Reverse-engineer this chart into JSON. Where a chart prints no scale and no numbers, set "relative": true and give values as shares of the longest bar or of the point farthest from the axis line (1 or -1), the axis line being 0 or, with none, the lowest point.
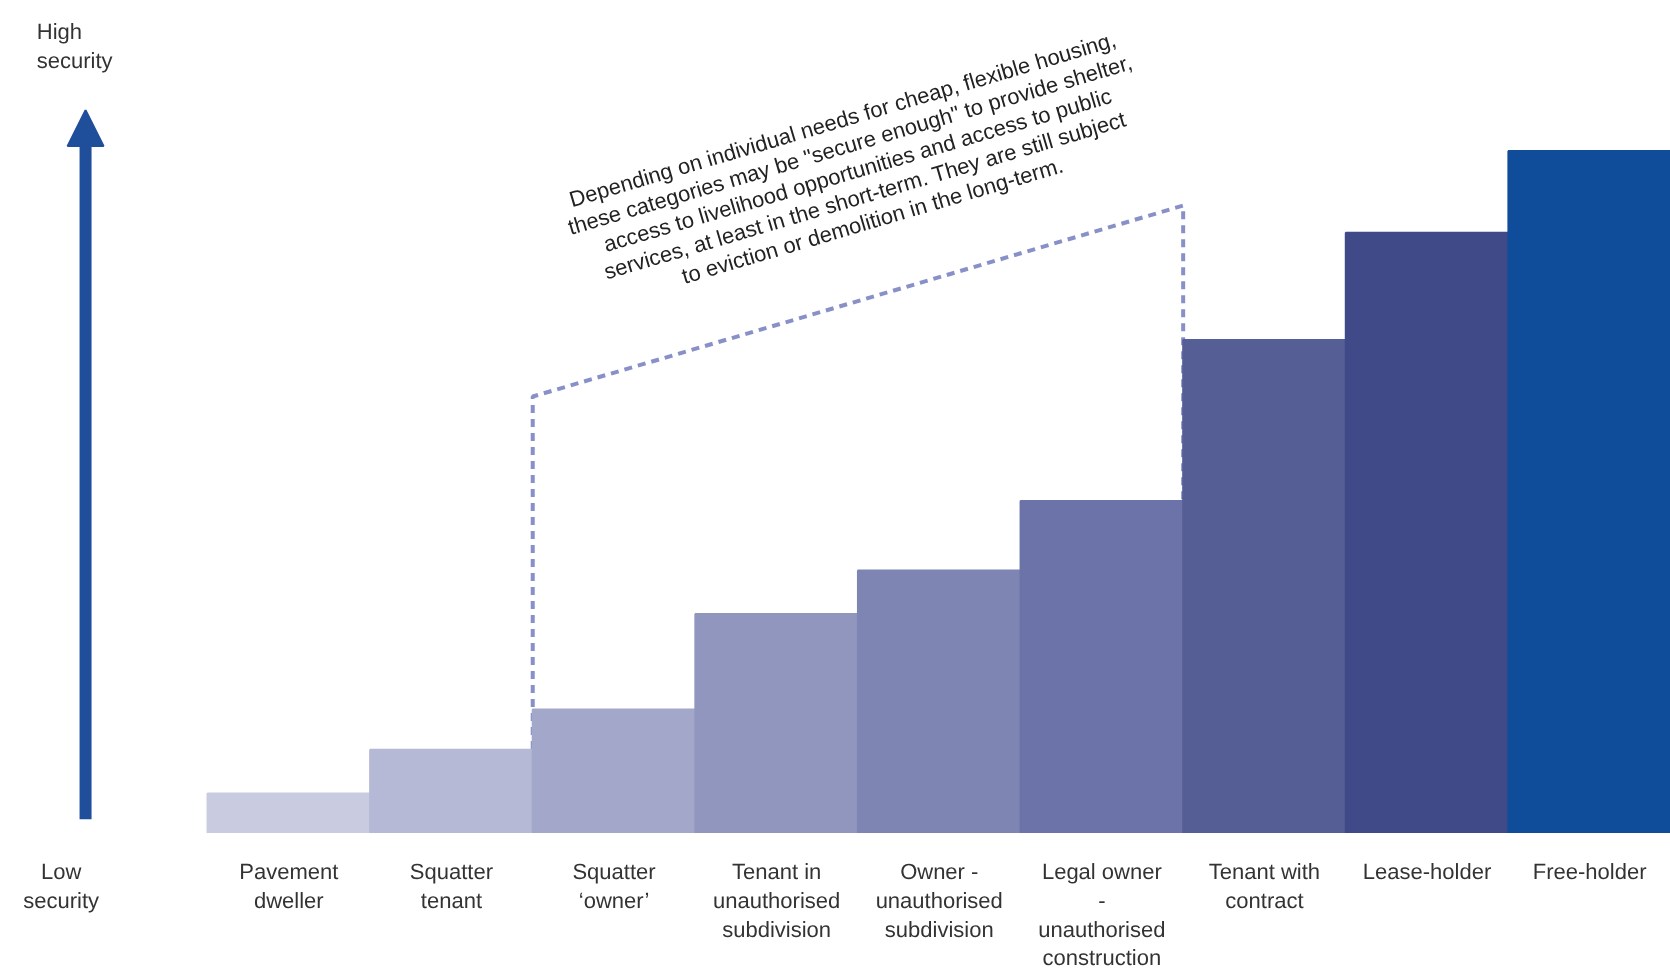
{
  "chart_data": {
    "type": "bar",
    "relative": true,
    "categories": [
      "Pavement dweller",
      "Squatter tenant",
      "Squatter ‘owner’",
      "Tenant in unauthorised subdivision",
      "Owner - unauthorised subdivision",
      "Legal owner - unauthorised construction",
      "Tenant with contract",
      "Lease-holder",
      "Free-holder"
    ],
    "values": [
      0.058,
      0.122,
      0.181,
      0.321,
      0.385,
      0.487,
      0.723,
      0.88,
      1.0
    ],
    "colors": [
      "#c9cce0",
      "#b5b9d5",
      "#a3a8cb",
      "#9096be",
      "#7e85b3",
      "#6b73a8",
      "#555e95",
      "#404a88",
      "#0f4c9a"
    ],
    "annotations": [
      "High security",
      "Low security",
      "Depending on individual needs for cheap, flexible housing, these categories may be \"secure enough\" to provide shelter, access to livelihood opportunities and access to public services, at least in the short-term. They are still subject to eviction or demolition in the long-term."
    ]
  }
}
